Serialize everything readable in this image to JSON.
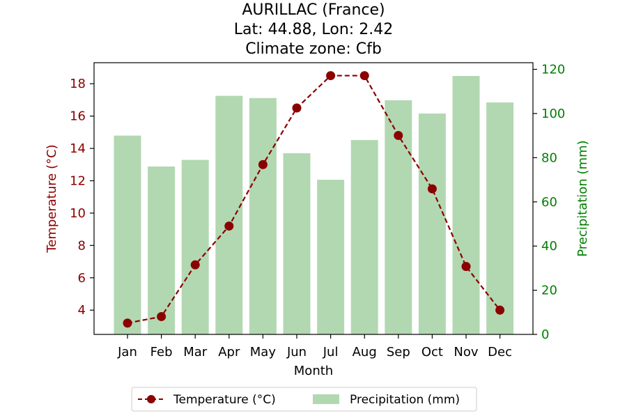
{
  "chart_data": {
    "type": "bar+line",
    "title": [
      "AURILLAC (France)",
      "Lat: 44.88, Lon: 2.42",
      "Climate zone: Cfb"
    ],
    "categories": [
      "Jan",
      "Feb",
      "Mar",
      "Apr",
      "May",
      "Jun",
      "Jul",
      "Aug",
      "Sep",
      "Oct",
      "Nov",
      "Dec"
    ],
    "xlabel": "Month",
    "ylabel_left": "Temperature (°C)",
    "ylabel_right": "Precipitation (mm)",
    "ylim_left": [
      2.5,
      19.3
    ],
    "ylim_right": [
      0,
      123
    ],
    "yticks_left": [
      4,
      6,
      8,
      10,
      12,
      14,
      16,
      18
    ],
    "yticks_right": [
      0,
      20,
      40,
      60,
      80,
      100,
      120
    ],
    "series": [
      {
        "name": "Temperature (°C)",
        "type": "line",
        "axis": "left",
        "values": [
          3.2,
          3.6,
          6.8,
          9.2,
          13.0,
          16.5,
          18.5,
          18.5,
          14.8,
          11.5,
          6.7,
          4.0
        ],
        "color": "#8b0000",
        "style": "dashed",
        "marker": "circle"
      },
      {
        "name": "Precipitation (mm)",
        "type": "bar",
        "axis": "right",
        "values": [
          90,
          76,
          79,
          108,
          107,
          82,
          70,
          88,
          106,
          100,
          117,
          105
        ],
        "color": "#b2d8b2"
      }
    ],
    "colors": {
      "left_axis": "#8b0000",
      "right_axis": "#008000"
    },
    "legend_placement": "bottom-center",
    "grid": false
  }
}
